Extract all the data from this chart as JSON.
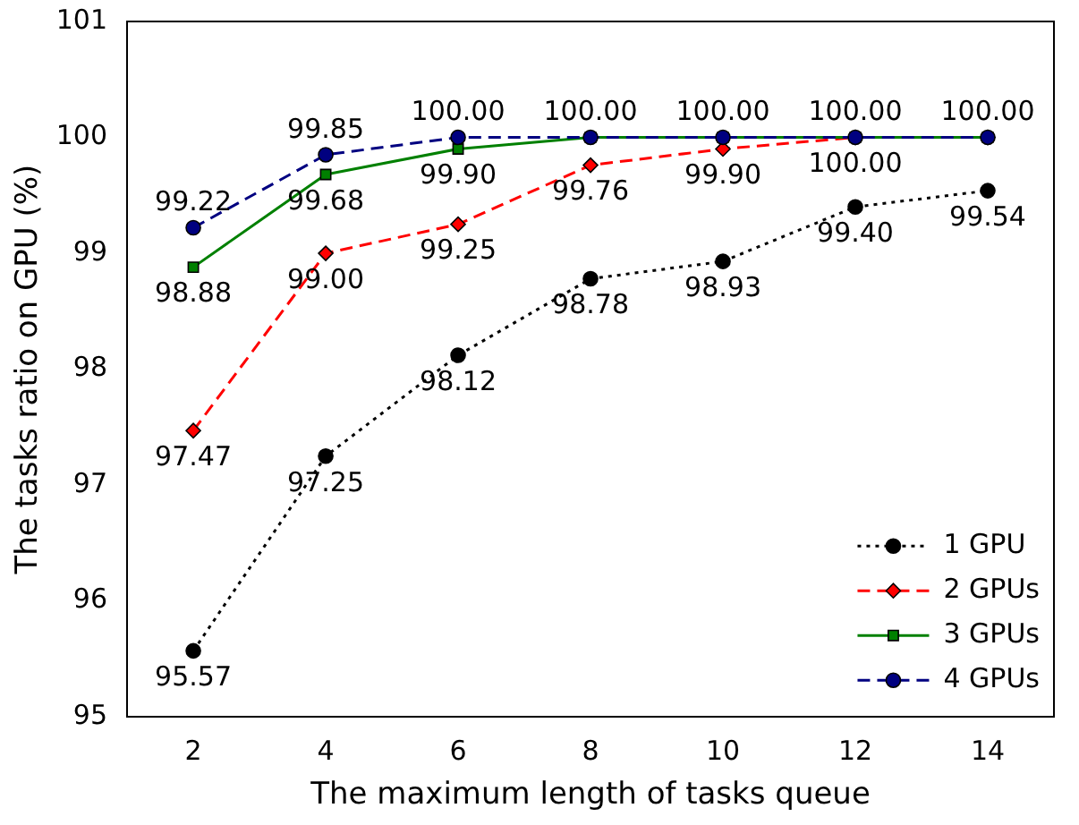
{
  "chart_data": {
    "type": "line",
    "xlabel": "The maximum length of tasks queue",
    "ylabel": "The tasks ratio on GPU (%)",
    "x": [
      2,
      4,
      6,
      8,
      10,
      12,
      14
    ],
    "xlim": [
      1,
      15
    ],
    "xticks": [
      2,
      4,
      6,
      8,
      10,
      12,
      14
    ],
    "ylim": [
      95,
      101
    ],
    "yticks": [
      95,
      96,
      97,
      98,
      99,
      100,
      101
    ],
    "grid": false,
    "legend": "bottom right",
    "series": [
      {
        "name": "1 GPU",
        "color": "#000000",
        "marker": "circle",
        "line_style": "dotted",
        "values": [
          95.57,
          97.25,
          98.12,
          98.78,
          98.93,
          99.4,
          99.54
        ],
        "value_labels": [
          "95.57",
          "97.25",
          "98.12",
          "98.78",
          "98.93",
          "99.40",
          "99.54"
        ]
      },
      {
        "name": "2 GPUs",
        "color": "#ff0000",
        "marker": "diamond",
        "line_style": "dashed",
        "values": [
          97.47,
          99.0,
          99.25,
          99.76,
          99.9,
          100.0,
          100.0
        ],
        "value_labels": [
          "97.47",
          "99.00",
          "99.25",
          "99.76",
          "99.90",
          "100.00",
          null
        ]
      },
      {
        "name": "3 GPUs",
        "color": "#008000",
        "marker": "square",
        "line_style": "solid",
        "values": [
          98.88,
          99.68,
          99.9,
          100.0,
          100.0,
          100.0,
          100.0
        ],
        "value_labels": [
          "98.88",
          "99.68",
          "99.90",
          null,
          null,
          null,
          null
        ]
      },
      {
        "name": "4 GPUs",
        "color": "#000080",
        "marker": "circle",
        "line_style": "dashed",
        "values": [
          99.22,
          99.85,
          100.0,
          100.0,
          100.0,
          100.0,
          100.0
        ],
        "value_labels": [
          "99.22",
          "99.85",
          "100.00",
          "100.00",
          "100.00",
          "100.00",
          "100.00"
        ]
      }
    ]
  }
}
